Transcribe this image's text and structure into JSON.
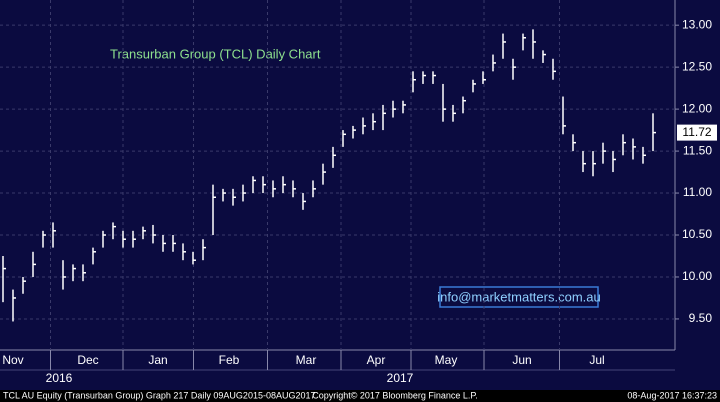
{
  "chart_data": {
    "type": "hlc",
    "title": "Transurban Group (TCL) Daily Chart",
    "color": "#ffffff",
    "values": [
      10.1,
      9.75,
      9.95,
      10.15,
      10.5,
      10.55,
      10.0,
      10.1,
      10.05,
      10.3,
      10.5,
      10.6,
      10.45,
      10.45,
      10.55,
      10.5,
      10.4,
      10.4,
      10.3,
      10.2,
      10.35,
      10.95,
      11.0,
      10.95,
      11.0,
      11.15,
      11.1,
      11.05,
      11.1,
      11.05,
      10.9,
      11.05,
      11.25,
      11.45,
      11.7,
      11.75,
      11.8,
      11.85,
      11.95,
      12.0,
      12.05,
      12.35,
      12.4,
      12.4,
      12.0,
      11.95,
      12.1,
      12.3,
      12.35,
      12.55,
      12.8,
      12.5,
      12.85,
      12.8,
      12.65,
      12.45,
      11.8,
      11.6,
      11.35,
      11.35,
      11.5,
      11.4,
      11.6,
      11.55,
      11.45,
      11.72
    ],
    "high": [
      10.25,
      9.85,
      10.0,
      10.3,
      10.55,
      10.65,
      10.2,
      10.15,
      10.15,
      10.35,
      10.55,
      10.65,
      10.55,
      10.55,
      10.6,
      10.62,
      10.5,
      10.5,
      10.4,
      10.3,
      10.45,
      11.1,
      11.05,
      11.05,
      11.1,
      11.2,
      11.2,
      11.15,
      11.2,
      11.15,
      11.0,
      11.15,
      11.35,
      11.55,
      11.75,
      11.8,
      11.9,
      11.95,
      12.05,
      12.1,
      12.1,
      12.45,
      12.45,
      12.45,
      12.3,
      12.05,
      12.15,
      12.35,
      12.45,
      12.65,
      12.9,
      12.6,
      12.9,
      12.95,
      12.7,
      12.6,
      12.15,
      11.7,
      11.5,
      11.5,
      11.6,
      11.5,
      11.7,
      11.65,
      11.55,
      11.95
    ],
    "low": [
      9.7,
      9.47,
      9.8,
      10.0,
      10.35,
      10.35,
      9.85,
      9.95,
      9.95,
      10.15,
      10.35,
      10.45,
      10.35,
      10.35,
      10.45,
      10.4,
      10.3,
      10.3,
      10.2,
      10.15,
      10.2,
      10.5,
      10.9,
      10.85,
      10.9,
      11.0,
      11.0,
      10.95,
      11.0,
      10.95,
      10.8,
      10.95,
      11.1,
      11.3,
      11.55,
      11.65,
      11.7,
      11.75,
      11.75,
      11.9,
      11.95,
      12.2,
      12.3,
      12.3,
      11.85,
      11.85,
      11.95,
      12.2,
      12.3,
      12.45,
      12.6,
      12.35,
      12.7,
      12.6,
      12.55,
      12.35,
      11.7,
      11.5,
      11.25,
      11.2,
      11.35,
      11.25,
      11.45,
      11.4,
      11.35,
      11.5
    ],
    "xlim": [
      -0.3,
      67.2
    ],
    "xticks": [
      {
        "value": 1,
        "label": "Nov"
      },
      {
        "value": 8.5,
        "label": "Dec"
      },
      {
        "value": 15.5,
        "label": "Jan"
      },
      {
        "value": 22.6,
        "label": "Feb"
      },
      {
        "value": 30.3,
        "label": "Mar"
      },
      {
        "value": 37.3,
        "label": "Apr"
      },
      {
        "value": 44.3,
        "label": "May"
      },
      {
        "value": 51.9,
        "label": "Jun"
      },
      {
        "value": 59.4,
        "label": "Jul"
      }
    ],
    "year_labels": [
      {
        "value": 5.6,
        "label": "2016"
      },
      {
        "value": 39.7,
        "label": "2017"
      }
    ],
    "ylim": [
      9.13,
      13.3
    ],
    "yticks": [
      {
        "value": 9.5,
        "label": "9.50"
      },
      {
        "value": 10,
        "label": "10.00"
      },
      {
        "value": 10.5,
        "label": "10.50"
      },
      {
        "value": 11,
        "label": "11.00"
      },
      {
        "value": 11.5,
        "label": "11.50"
      },
      {
        "value": 12,
        "label": "12.00"
      },
      {
        "value": 12.5,
        "label": "12.50"
      },
      {
        "value": 13,
        "label": "13.00"
      }
    ],
    "grid": true,
    "annotation": "info@marketmatters.com.au",
    "footer_left": "TCL AU Equity (Transurban Group) Graph 217  Daily 09AUG2015-08AUG2017",
    "footer_center": "Copyright© 2017 Bloomberg Finance L.P.",
    "footer_right": "08-Aug-2017 16:37:23"
  }
}
